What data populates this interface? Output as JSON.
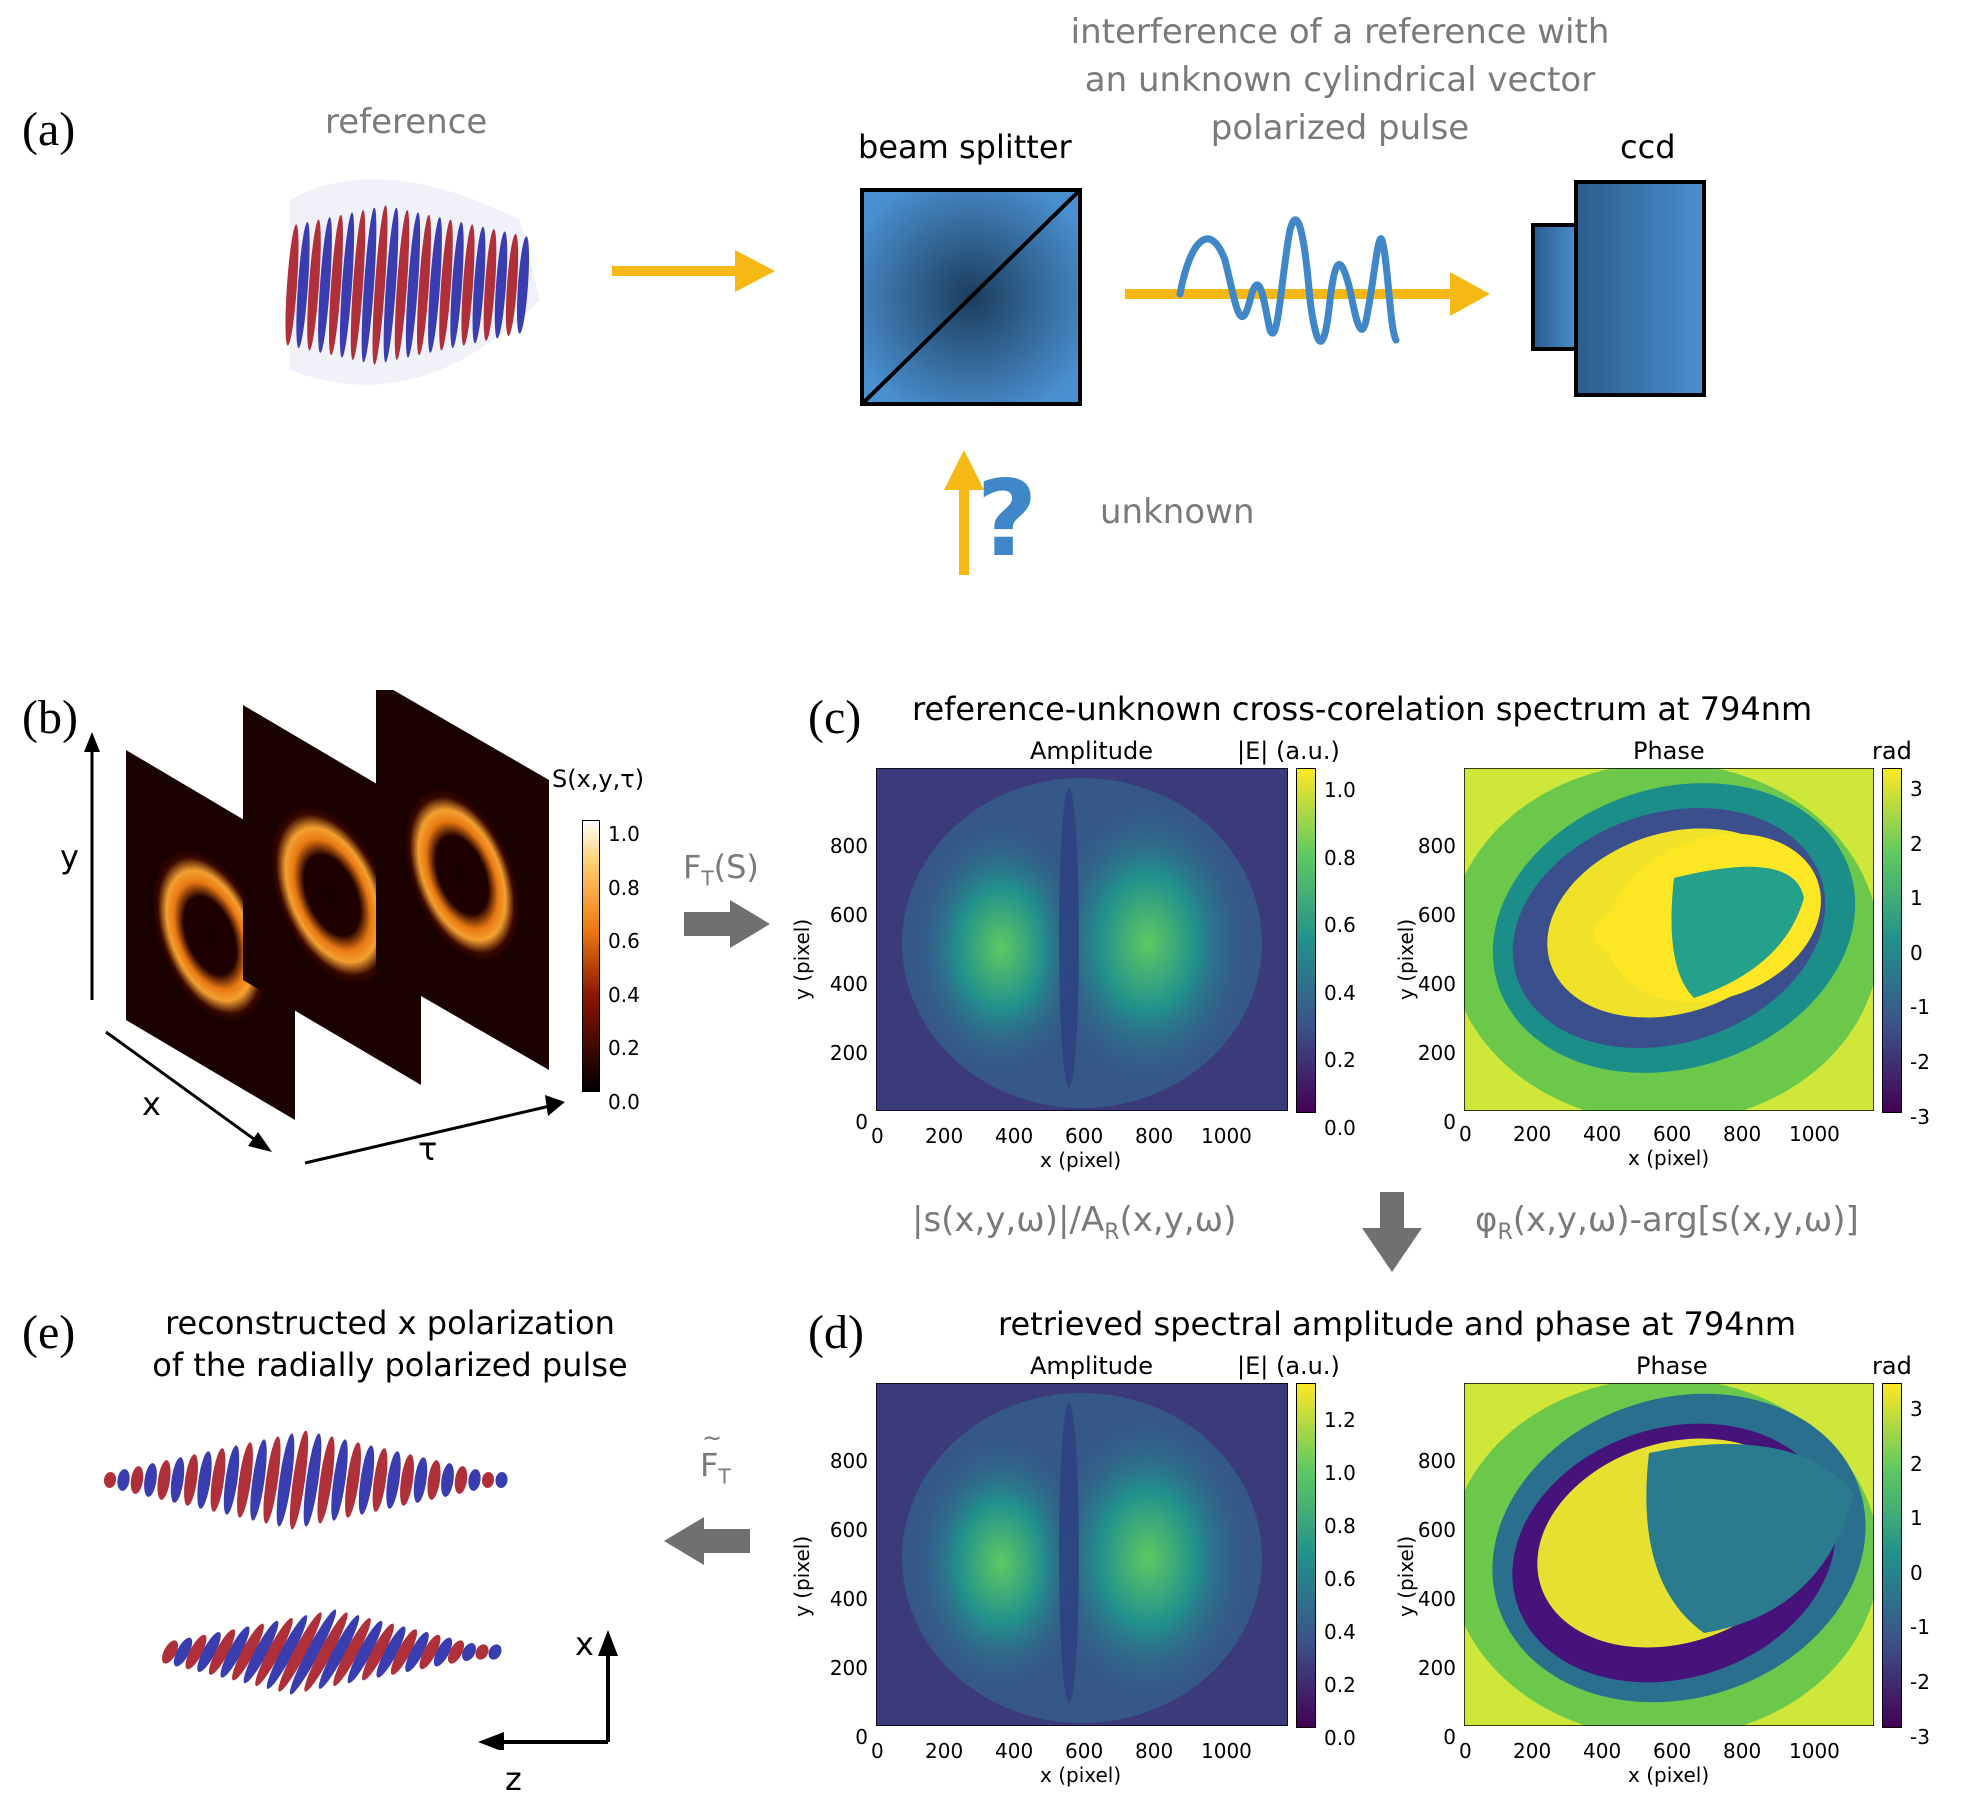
{
  "colors": {
    "arrow_yellow": "#f6b815",
    "arrow_grey": "#707070",
    "device_blue": "#3f87c8",
    "pulse_red": "#b0303a",
    "pulse_blue": "#3a3db0"
  },
  "panels": {
    "a": "(a)",
    "b": "(b)",
    "c": "(c)",
    "d": "(d)",
    "e": "(e)"
  },
  "panel_a": {
    "reference_label": "reference",
    "interference_line1": "interference of a reference with",
    "interference_line2": "an unknown cylindrical vector",
    "interference_line3": "polarized pulse",
    "beam_splitter_label": "beam splitter",
    "ccd_label": "ccd",
    "unknown_label": "unknown",
    "question_mark": "?"
  },
  "panel_b": {
    "y_axis": "y",
    "x_axis": "x",
    "tau_axis": "τ",
    "colorbar_title": "S(x,y,τ)",
    "colorbar_ticks": [
      "1.0",
      "0.8",
      "0.6",
      "0.4",
      "0.2",
      "0.0"
    ],
    "transform_label": "F",
    "transform_sub": "T",
    "transform_arg": "(S)"
  },
  "panel_c": {
    "title": "reference-unknown cross-corelation spectrum at 794nm",
    "amp_title": "Amplitude",
    "amp_cbar_label": "|E| (a.u.)",
    "amp_cbar_ticks": [
      "1.0",
      "0.8",
      "0.6",
      "0.4",
      "0.2",
      "0.0"
    ],
    "phase_title": "Phase",
    "phase_cbar_label": "rad",
    "phase_cbar_ticks": [
      "3",
      "2",
      "1",
      "0",
      "-1",
      "-2",
      "-3"
    ],
    "x_label": "x (pixel)",
    "y_label": "y (pixel)",
    "x_ticks": [
      "0",
      "200",
      "400",
      "600",
      "800",
      "1000"
    ],
    "y_ticks": [
      "800",
      "600",
      "400",
      "200",
      "0"
    ]
  },
  "formulas": {
    "left_a": "|s(x,y,ω)|/A",
    "left_sub": "R",
    "left_b": "(x,y,ω)",
    "right_a": "φ",
    "right_sub": "R",
    "right_b": "(x,y,ω)-arg[s(x,y,ω)]"
  },
  "panel_d": {
    "title": "retrieved spectral amplitude and phase at 794nm",
    "amp_title": "Amplitude",
    "amp_cbar_label": "|E| (a.u.)",
    "amp_cbar_ticks": [
      "1.2",
      "1.0",
      "0.8",
      "0.6",
      "0.4",
      "0.2",
      "0.0"
    ],
    "phase_title": "Phase",
    "phase_cbar_label": "rad",
    "phase_cbar_ticks": [
      "3",
      "2",
      "1",
      "0",
      "-1",
      "-2",
      "-3"
    ],
    "x_label": "x (pixel)",
    "y_label": "y (pixel)",
    "x_ticks": [
      "0",
      "200",
      "400",
      "600",
      "800",
      "1000"
    ],
    "y_ticks": [
      "800",
      "600",
      "400",
      "200",
      "0"
    ]
  },
  "panel_e": {
    "title_line1": "reconstructed x polarization",
    "title_line2": "of the radially polarized pulse",
    "inverse_label": "F",
    "inverse_sub": "T",
    "inverse_tilde": "~",
    "axis_x": "x",
    "axis_z": "z"
  }
}
